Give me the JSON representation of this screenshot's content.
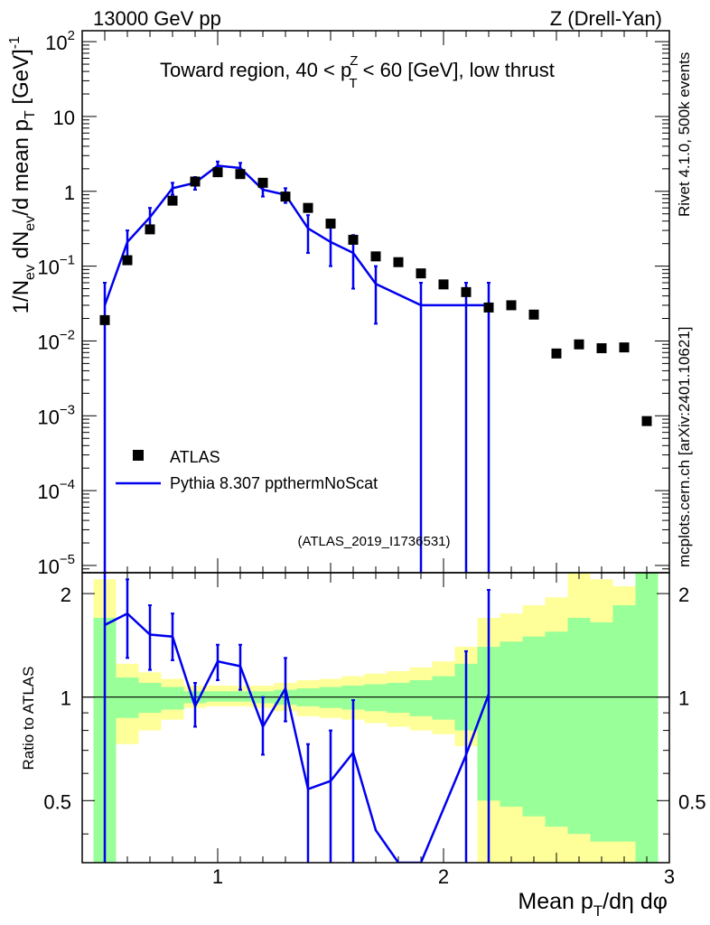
{
  "header": {
    "energy": "13000 GeV pp",
    "process": "Z (Drell-Yan)",
    "rivet": "Rivet 4.1.0,  500k events",
    "source": "mcplots.cern.ch [arXiv:2401.10621]",
    "analysis": "(ATLAS_2019_I1736531)"
  },
  "chart_data": {
    "type": "line",
    "title": "Toward region, 40 < pT(Z) < 60 [GeV], low thrust",
    "title_parts": [
      "Toward region, 40 < p",
      "Z",
      "T",
      " < 60 [GeV], low thrust"
    ],
    "xlabel": "Mean pT/dη dφ",
    "xlabel_parts": [
      "Mean p",
      "T",
      "/dη dφ"
    ],
    "ylabel": "1/Nev dNev/d mean pT [GeV]^-1",
    "ylabel_parts": [
      "1/N",
      "ev",
      " dN",
      "ev",
      "/d mean p",
      "T",
      " [GeV]",
      "-1"
    ],
    "ratio_ylabel": "Ratio to ATLAS",
    "xlim": [
      0.4,
      3.0
    ],
    "ylim": [
      8e-06,
      140
    ],
    "ratio_ylim": [
      0.33,
      2.3
    ],
    "x_tick_labels": [
      "1",
      "2",
      "3"
    ],
    "y_tick_labels": [
      {
        "v": 100,
        "m": "10",
        "e": "2"
      },
      {
        "v": 10,
        "m": "10",
        "e": ""
      },
      {
        "v": 1,
        "m": "1",
        "e": ""
      },
      {
        "v": 0.1,
        "m": "10",
        "e": "−1"
      },
      {
        "v": 0.01,
        "m": "10",
        "e": "−2"
      },
      {
        "v": 0.001,
        "m": "10",
        "e": "−3"
      },
      {
        "v": 0.0001,
        "m": "10",
        "e": "−4"
      },
      {
        "v": 1e-05,
        "m": "10",
        "e": "−5"
      }
    ],
    "ratio_tick_labels": [
      "0.5",
      "1",
      "2"
    ],
    "legend": [
      {
        "name": "ATLAS",
        "marker": "square",
        "color": "#000000"
      },
      {
        "name": "Pythia 8.307 ppthermNoScat",
        "marker": "line",
        "color": "#0000ee"
      }
    ],
    "atlas": {
      "x": [
        0.5,
        0.6,
        0.7,
        0.8,
        0.9,
        1.0,
        1.1,
        1.2,
        1.3,
        1.4,
        1.5,
        1.6,
        1.7,
        1.8,
        1.9,
        2.0,
        2.1,
        2.2,
        2.3,
        2.4,
        2.5,
        2.6,
        2.7,
        2.8,
        2.9
      ],
      "y": [
        0.019,
        0.12,
        0.31,
        0.75,
        1.35,
        1.8,
        1.7,
        1.3,
        0.85,
        0.6,
        0.37,
        0.225,
        0.135,
        0.113,
        0.08,
        0.057,
        0.045,
        0.028,
        0.03,
        0.0225,
        0.0068,
        0.009,
        0.008,
        0.0082,
        0.00085
      ]
    },
    "pythia": {
      "x": [
        0.5,
        0.6,
        0.7,
        0.8,
        0.9,
        1.0,
        1.1,
        1.2,
        1.3,
        1.4,
        1.5,
        1.6,
        1.7,
        1.9,
        2.1,
        2.2
      ],
      "y": [
        0.03,
        0.21,
        0.45,
        1.1,
        1.3,
        2.2,
        2.05,
        1.05,
        0.9,
        0.32,
        0.21,
        0.15,
        0.058,
        0.03,
        0.03,
        0.03
      ],
      "err_hi": [
        0.06,
        0.3,
        0.6,
        1.3,
        1.55,
        2.5,
        2.4,
        1.3,
        1.1,
        0.48,
        0.33,
        0.26,
        0.1,
        0.06,
        0.06,
        0.06
      ],
      "err_lo": [
        1e-07,
        0.13,
        0.32,
        0.9,
        1.05,
        1.95,
        1.7,
        0.85,
        0.7,
        0.15,
        0.1,
        0.05,
        0.017,
        1e-07,
        1e-07,
        1e-07
      ]
    },
    "ratio_line": {
      "x": [
        0.5,
        0.6,
        0.7,
        0.8,
        0.9,
        1.0,
        1.1,
        1.2,
        1.3,
        1.4,
        1.5,
        1.6,
        1.7,
        1.8,
        1.9,
        2.1,
        2.2
      ],
      "y": [
        1.62,
        1.75,
        1.52,
        1.5,
        0.94,
        1.27,
        1.23,
        0.82,
        1.06,
        0.54,
        0.57,
        0.69,
        0.41,
        0.3,
        0.28,
        0.68,
        1.02
      ],
      "err_hi": [
        2.3,
        2.2,
        1.85,
        1.75,
        1.1,
        1.42,
        1.42,
        1.0,
        1.3,
        0.73,
        0.8,
        0.98,
        0.41,
        0.3,
        0.28,
        1.36,
        2.05
      ],
      "err_lo": [
        0.0,
        1.3,
        1.2,
        1.28,
        0.82,
        1.12,
        1.05,
        0.68,
        0.85,
        0.0,
        0.0,
        0.0,
        0.41,
        0.3,
        0.28,
        0.0,
        0.0
      ]
    },
    "ratio_bands": {
      "x0": [
        0.45,
        0.55,
        0.65,
        0.75,
        0.85,
        0.95,
        1.05,
        1.15,
        1.25,
        1.35,
        1.45,
        1.55,
        1.65,
        1.75,
        1.85,
        1.95,
        2.05,
        2.15,
        2.25,
        2.35,
        2.45,
        2.55,
        2.65,
        2.75,
        2.85
      ],
      "x1": [
        0.55,
        0.65,
        0.75,
        0.85,
        0.95,
        1.05,
        1.15,
        1.25,
        1.35,
        1.45,
        1.55,
        1.65,
        1.75,
        1.85,
        1.95,
        2.05,
        2.15,
        2.25,
        2.35,
        2.45,
        2.55,
        2.65,
        2.75,
        2.85,
        2.95
      ],
      "green_lo": [
        0.33,
        0.87,
        0.9,
        0.92,
        0.96,
        0.97,
        0.97,
        0.96,
        0.95,
        0.94,
        0.93,
        0.92,
        0.91,
        0.9,
        0.88,
        0.86,
        0.8,
        0.5,
        0.48,
        0.45,
        0.42,
        0.4,
        0.38,
        0.38,
        0.33
      ],
      "green_hi": [
        1.7,
        1.14,
        1.1,
        1.07,
        1.04,
        1.04,
        1.04,
        1.04,
        1.05,
        1.06,
        1.07,
        1.08,
        1.09,
        1.1,
        1.12,
        1.15,
        1.25,
        1.4,
        1.45,
        1.5,
        1.55,
        1.7,
        1.65,
        1.85,
        2.3
      ],
      "yellow_lo": [
        0.33,
        0.73,
        0.8,
        0.86,
        0.93,
        0.94,
        0.94,
        0.93,
        0.91,
        0.88,
        0.87,
        0.86,
        0.84,
        0.82,
        0.8,
        0.78,
        0.72,
        0.33,
        0.33,
        0.33,
        0.33,
        0.33,
        0.33,
        0.33,
        0.33
      ],
      "yellow_hi": [
        2.2,
        1.25,
        1.18,
        1.13,
        1.08,
        1.08,
        1.08,
        1.08,
        1.1,
        1.12,
        1.13,
        1.15,
        1.17,
        1.19,
        1.22,
        1.27,
        1.4,
        1.7,
        1.75,
        1.85,
        1.95,
        2.3,
        2.2,
        2.1,
        2.3
      ]
    },
    "colors": {
      "green": "#99ff99",
      "yellow": "#ffff99",
      "pythia": "#0000ee",
      "data": "#000000",
      "watermark": "#808080"
    }
  }
}
